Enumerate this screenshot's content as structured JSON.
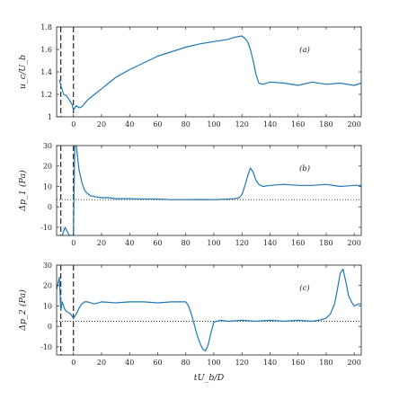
{
  "x_axis_label": "tU_b/D",
  "chart_data": [
    {
      "type": "line",
      "panel_label": "(a)",
      "ylabel": "u_c/U_b",
      "xlim": [
        -12,
        205
      ],
      "ylim": [
        1.0,
        1.8
      ],
      "yticks": [
        1,
        1.2,
        1.4,
        1.6,
        1.8
      ],
      "xticks": [
        0,
        20,
        40,
        60,
        80,
        100,
        120,
        140,
        160,
        180,
        200
      ],
      "dashed_vlines": [
        -9,
        0
      ],
      "reference_line": null,
      "line_color": "#1f77b4",
      "series": [
        {
          "x": [
            -10,
            -9,
            -7,
            -5,
            -3,
            -1,
            0,
            2,
            4,
            6,
            8,
            10,
            15,
            20,
            25,
            30,
            40,
            50,
            60,
            70,
            80,
            90,
            100,
            110,
            115,
            120,
            122,
            124,
            126,
            128,
            130,
            132,
            135,
            140,
            150,
            160,
            170,
            180,
            190,
            200,
            205
          ],
          "y": [
            1.33,
            1.28,
            1.2,
            1.19,
            1.15,
            1.11,
            1.06,
            1.1,
            1.08,
            1.09,
            1.12,
            1.15,
            1.2,
            1.25,
            1.3,
            1.35,
            1.42,
            1.48,
            1.54,
            1.58,
            1.62,
            1.65,
            1.67,
            1.69,
            1.71,
            1.72,
            1.7,
            1.67,
            1.6,
            1.5,
            1.38,
            1.3,
            1.29,
            1.31,
            1.3,
            1.28,
            1.31,
            1.29,
            1.3,
            1.28,
            1.3
          ]
        }
      ]
    },
    {
      "type": "line",
      "panel_label": "(b)",
      "ylabel": "Δp_1 (Pa)",
      "xlim": [
        -12,
        205
      ],
      "ylim": [
        -14,
        30
      ],
      "yticks": [
        -10,
        0,
        10,
        20,
        30
      ],
      "xticks": [
        0,
        20,
        40,
        60,
        80,
        100,
        120,
        140,
        160,
        180,
        200
      ],
      "dashed_vlines": [
        -9,
        0
      ],
      "reference_line": 3.5,
      "line_color": "#1f77b4",
      "series": [
        {
          "x": [
            -9,
            -6,
            -3,
            0,
            1,
            2,
            3,
            4,
            6,
            8,
            10,
            12,
            15,
            20,
            25,
            30,
            40,
            50,
            60,
            70,
            80,
            90,
            100,
            110,
            115,
            118,
            120,
            122,
            124,
            126,
            128,
            130,
            132,
            135,
            140,
            150,
            160,
            170,
            180,
            190,
            200,
            205
          ],
          "y": [
            -16,
            -10,
            -14,
            -14,
            34,
            30,
            24,
            18,
            12,
            8,
            6.5,
            5.5,
            5,
            4.5,
            4.5,
            4,
            4,
            3.8,
            3.8,
            3.5,
            3.5,
            3.6,
            3.5,
            3.8,
            4,
            4.5,
            6,
            10,
            15,
            19,
            17,
            13,
            11,
            10,
            10.5,
            11,
            10.5,
            10.5,
            11,
            10,
            10.5,
            10.5
          ]
        }
      ]
    },
    {
      "type": "line",
      "panel_label": "(c)",
      "ylabel": "Δp_2 (Pa)",
      "xlim": [
        -12,
        205
      ],
      "ylim": [
        -14,
        30
      ],
      "yticks": [
        -10,
        0,
        10,
        20,
        30
      ],
      "xticks": [
        0,
        20,
        40,
        60,
        80,
        100,
        120,
        140,
        160,
        180,
        200
      ],
      "dashed_vlines": [
        -9,
        0
      ],
      "reference_line": 2.5,
      "line_color": "#1f77b4",
      "series": [
        {
          "x": [
            -12,
            -10,
            -9,
            -8,
            -6,
            -4,
            -2,
            0,
            2,
            4,
            6,
            8,
            10,
            15,
            20,
            30,
            40,
            50,
            60,
            70,
            80,
            82,
            84,
            86,
            88,
            90,
            92,
            94,
            96,
            98,
            100,
            102,
            105,
            110,
            120,
            130,
            140,
            150,
            160,
            170,
            175,
            180,
            183,
            186,
            188,
            190,
            192,
            194,
            196,
            198,
            200,
            203,
            205
          ],
          "y": [
            18,
            24,
            8,
            12,
            8,
            7,
            6,
            4,
            6,
            9,
            11,
            12,
            12,
            11,
            12,
            11.5,
            12,
            12,
            11.5,
            12,
            12,
            10,
            6,
            1,
            -4,
            -8,
            -11,
            -12,
            -9,
            -3,
            2,
            2.5,
            3,
            2.5,
            3,
            2.5,
            3,
            2.5,
            3,
            2.5,
            3,
            4,
            6,
            11,
            18,
            26,
            28,
            22,
            15,
            12,
            10,
            11,
            11
          ]
        }
      ]
    }
  ]
}
